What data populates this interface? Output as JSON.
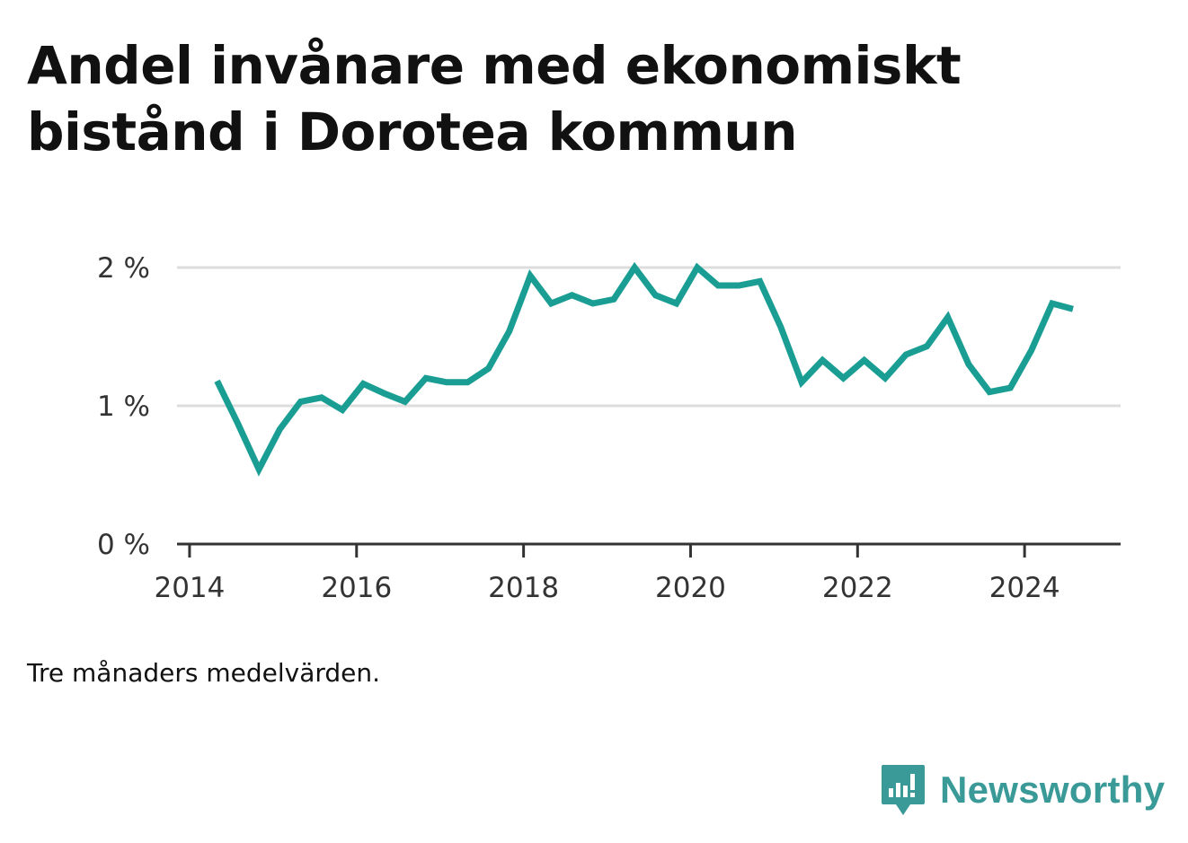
{
  "title": "Andel invånare med ekonomiskt bistånd i Dorotea kommun",
  "note": "Tre månaders medelvärden.",
  "brand": {
    "name": "Newsworthy",
    "color": "#3a9a98"
  },
  "chart_data": {
    "type": "line",
    "title": "Andel invånare med ekonomiskt bistånd i Dorotea kommun",
    "xlabel": "",
    "ylabel": "",
    "x_tick_labels": [
      "2014",
      "2016",
      "2018",
      "2020",
      "2022",
      "2024"
    ],
    "x_ticks": [
      2014,
      2016,
      2018,
      2020,
      2022,
      2024
    ],
    "y_tick_labels": [
      "0 %",
      "1 %",
      "2 %"
    ],
    "y_ticks": [
      0,
      1,
      2
    ],
    "xlim": [
      2013.85,
      2025.15
    ],
    "ylim": [
      0,
      2
    ],
    "grid": true,
    "legend": "none",
    "series": [
      {
        "color": "#1a9e94",
        "points": [
          [
            2014.33,
            1.18
          ],
          [
            2014.58,
            0.87
          ],
          [
            2014.83,
            0.54
          ],
          [
            2015.08,
            0.83
          ],
          [
            2015.33,
            1.03
          ],
          [
            2015.58,
            1.06
          ],
          [
            2015.83,
            0.97
          ],
          [
            2016.08,
            1.16
          ],
          [
            2016.33,
            1.09
          ],
          [
            2016.58,
            1.03
          ],
          [
            2016.83,
            1.2
          ],
          [
            2017.08,
            1.17
          ],
          [
            2017.33,
            1.17
          ],
          [
            2017.58,
            1.27
          ],
          [
            2017.83,
            1.54
          ],
          [
            2018.08,
            1.94
          ],
          [
            2018.33,
            1.74
          ],
          [
            2018.58,
            1.8
          ],
          [
            2018.83,
            1.74
          ],
          [
            2019.08,
            1.77
          ],
          [
            2019.33,
            2.0
          ],
          [
            2019.58,
            1.8
          ],
          [
            2019.83,
            1.74
          ],
          [
            2020.08,
            2.0
          ],
          [
            2020.33,
            1.87
          ],
          [
            2020.58,
            1.87
          ],
          [
            2020.83,
            1.9
          ],
          [
            2021.08,
            1.57
          ],
          [
            2021.33,
            1.17
          ],
          [
            2021.58,
            1.33
          ],
          [
            2021.83,
            1.2
          ],
          [
            2022.08,
            1.33
          ],
          [
            2022.33,
            1.2
          ],
          [
            2022.58,
            1.37
          ],
          [
            2022.83,
            1.43
          ],
          [
            2023.08,
            1.64
          ],
          [
            2023.33,
            1.3
          ],
          [
            2023.58,
            1.1
          ],
          [
            2023.83,
            1.13
          ],
          [
            2024.08,
            1.4
          ],
          [
            2024.33,
            1.74
          ],
          [
            2024.58,
            1.7
          ]
        ]
      }
    ]
  }
}
